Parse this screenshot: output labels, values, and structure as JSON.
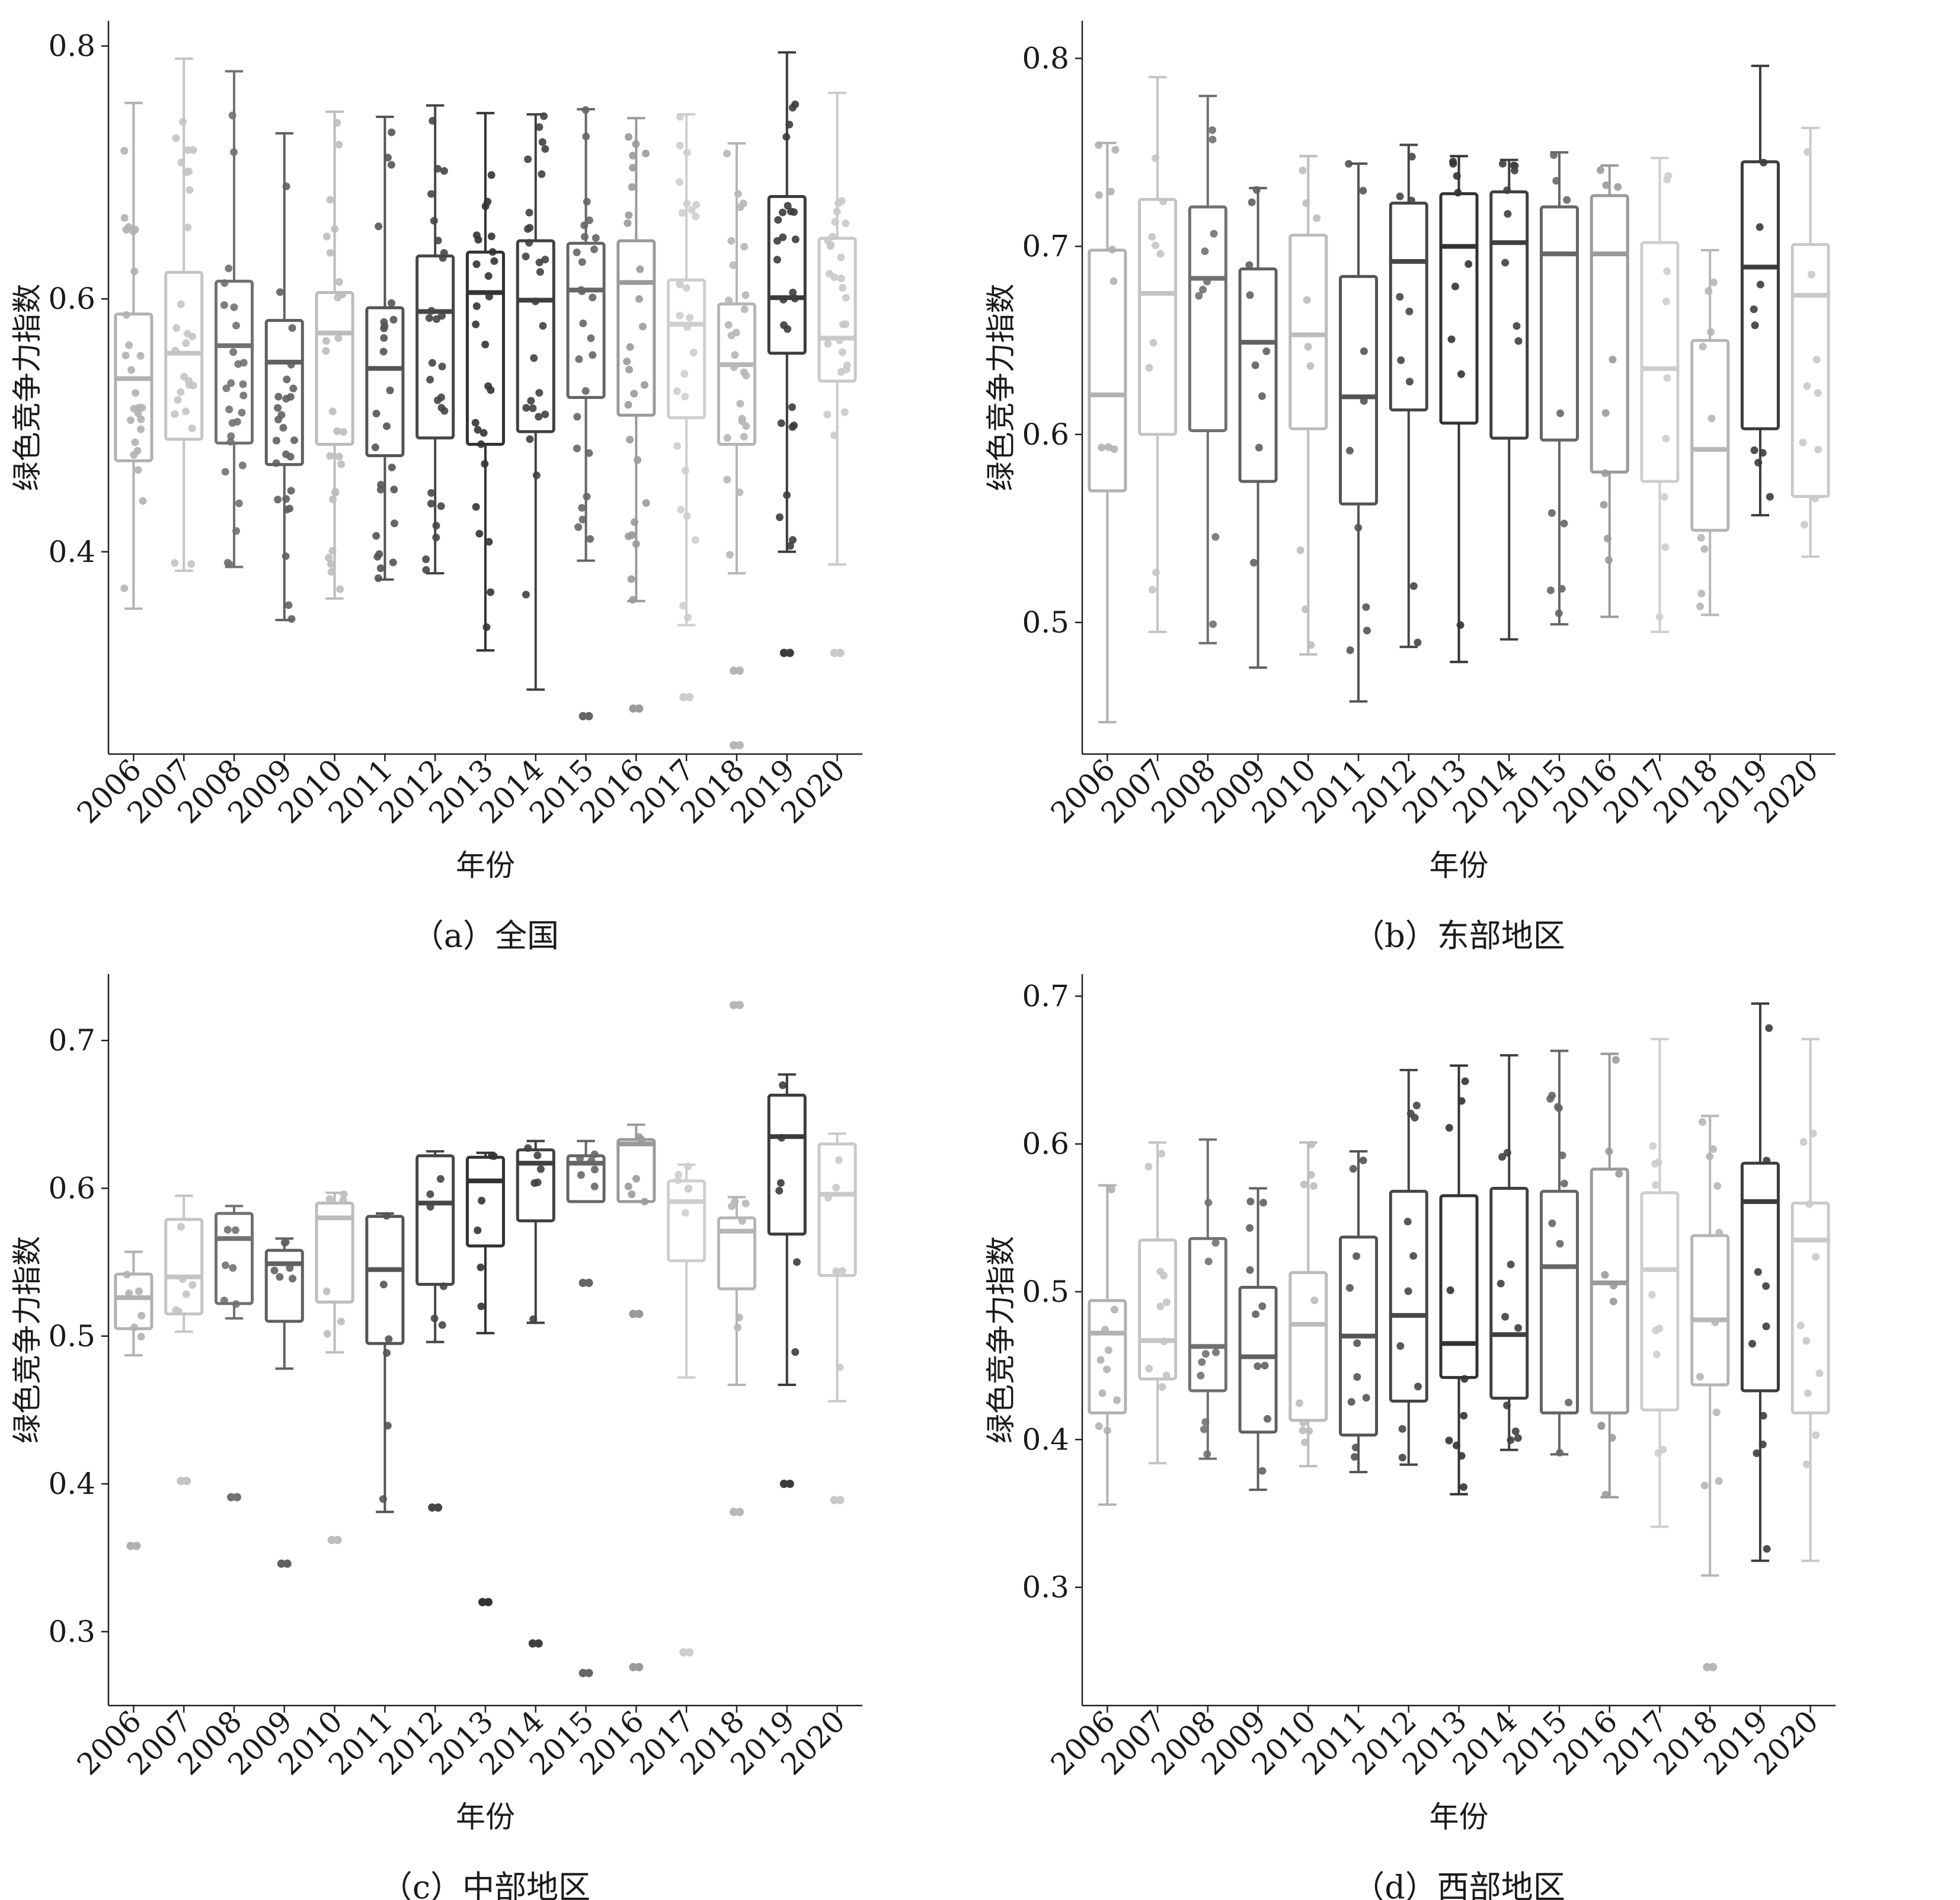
{
  "xlabel": "年份",
  "ylabel": "绿色竞争力指数",
  "years": [
    "2006",
    "2007",
    "2008",
    "2009",
    "2010",
    "2011",
    "2012",
    "2013",
    "2014",
    "2015",
    "2016",
    "2017",
    "2018",
    "2019",
    "2020"
  ],
  "year_colors": [
    "#b1b1b1",
    "#c4c4c4",
    "#717171",
    "#606060",
    "#bcbcbc",
    "#545454",
    "#464646",
    "#333333",
    "#404040",
    "#666666",
    "#9a9a9a",
    "#cecece",
    "#b6b6b6",
    "#3c3c3c",
    "#c9c9c9"
  ],
  "chart_data": [
    {
      "type": "box",
      "caption": "（a）全国",
      "ylim": [
        0.24,
        0.82
      ],
      "yticks": [
        "0.4",
        "0.6",
        "0.8"
      ],
      "boxes": [
        {
          "year": "2006",
          "q1": 0.472,
          "median": 0.537,
          "q3": 0.588,
          "whisker_low": 0.355,
          "whisker_high": 0.755,
          "outliers": []
        },
        {
          "year": "2007",
          "q1": 0.489,
          "median": 0.557,
          "q3": 0.621,
          "whisker_low": 0.385,
          "whisker_high": 0.79,
          "outliers": []
        },
        {
          "year": "2008",
          "q1": 0.486,
          "median": 0.563,
          "q3": 0.614,
          "whisker_low": 0.388,
          "whisker_high": 0.78,
          "outliers": []
        },
        {
          "year": "2009",
          "q1": 0.469,
          "median": 0.55,
          "q3": 0.583,
          "whisker_low": 0.346,
          "whisker_high": 0.731,
          "outliers": []
        },
        {
          "year": "2010",
          "q1": 0.485,
          "median": 0.573,
          "q3": 0.605,
          "whisker_low": 0.363,
          "whisker_high": 0.748,
          "outliers": []
        },
        {
          "year": "2011",
          "q1": 0.476,
          "median": 0.545,
          "q3": 0.593,
          "whisker_low": 0.378,
          "whisker_high": 0.744,
          "outliers": []
        },
        {
          "year": "2012",
          "q1": 0.49,
          "median": 0.59,
          "q3": 0.634,
          "whisker_low": 0.383,
          "whisker_high": 0.753,
          "outliers": []
        },
        {
          "year": "2013",
          "q1": 0.485,
          "median": 0.605,
          "q3": 0.637,
          "whisker_low": 0.322,
          "whisker_high": 0.747,
          "outliers": []
        },
        {
          "year": "2014",
          "q1": 0.495,
          "median": 0.599,
          "q3": 0.646,
          "whisker_low": 0.291,
          "whisker_high": 0.746,
          "outliers": []
        },
        {
          "year": "2015",
          "q1": 0.522,
          "median": 0.607,
          "q3": 0.644,
          "whisker_low": 0.393,
          "whisker_high": 0.75,
          "outliers": [
            0.27
          ]
        },
        {
          "year": "2016",
          "q1": 0.508,
          "median": 0.613,
          "q3": 0.646,
          "whisker_low": 0.361,
          "whisker_high": 0.743,
          "outliers": [
            0.276
          ]
        },
        {
          "year": "2017",
          "q1": 0.506,
          "median": 0.58,
          "q3": 0.615,
          "whisker_low": 0.342,
          "whisker_high": 0.746,
          "outliers": [
            0.285
          ]
        },
        {
          "year": "2018",
          "q1": 0.485,
          "median": 0.548,
          "q3": 0.596,
          "whisker_low": 0.383,
          "whisker_high": 0.723,
          "outliers": [
            0.306,
            0.247
          ]
        },
        {
          "year": "2019",
          "q1": 0.557,
          "median": 0.601,
          "q3": 0.681,
          "whisker_low": 0.4,
          "whisker_high": 0.795,
          "outliers": [
            0.32
          ]
        },
        {
          "year": "2020",
          "q1": 0.535,
          "median": 0.569,
          "q3": 0.648,
          "whisker_low": 0.39,
          "whisker_high": 0.763,
          "outliers": [
            0.32
          ]
        }
      ]
    },
    {
      "type": "box",
      "caption": "（b）东部地区",
      "ylim": [
        0.43,
        0.82
      ],
      "yticks": [
        "0.5",
        "0.6",
        "0.7",
        "0.8"
      ],
      "boxes": [
        {
          "year": "2006",
          "q1": 0.57,
          "median": 0.621,
          "q3": 0.698,
          "whisker_low": 0.447,
          "whisker_high": 0.755,
          "outliers": []
        },
        {
          "year": "2007",
          "q1": 0.6,
          "median": 0.675,
          "q3": 0.725,
          "whisker_low": 0.495,
          "whisker_high": 0.79,
          "outliers": []
        },
        {
          "year": "2008",
          "q1": 0.602,
          "median": 0.683,
          "q3": 0.721,
          "whisker_low": 0.489,
          "whisker_high": 0.78,
          "outliers": []
        },
        {
          "year": "2009",
          "q1": 0.575,
          "median": 0.649,
          "q3": 0.688,
          "whisker_low": 0.476,
          "whisker_high": 0.731,
          "outliers": []
        },
        {
          "year": "2010",
          "q1": 0.603,
          "median": 0.653,
          "q3": 0.706,
          "whisker_low": 0.483,
          "whisker_high": 0.748,
          "outliers": []
        },
        {
          "year": "2011",
          "q1": 0.563,
          "median": 0.62,
          "q3": 0.684,
          "whisker_low": 0.458,
          "whisker_high": 0.744,
          "outliers": []
        },
        {
          "year": "2012",
          "q1": 0.613,
          "median": 0.692,
          "q3": 0.723,
          "whisker_low": 0.487,
          "whisker_high": 0.754,
          "outliers": []
        },
        {
          "year": "2013",
          "q1": 0.606,
          "median": 0.7,
          "q3": 0.728,
          "whisker_low": 0.479,
          "whisker_high": 0.748,
          "outliers": []
        },
        {
          "year": "2014",
          "q1": 0.598,
          "median": 0.702,
          "q3": 0.729,
          "whisker_low": 0.491,
          "whisker_high": 0.746,
          "outliers": []
        },
        {
          "year": "2015",
          "q1": 0.597,
          "median": 0.696,
          "q3": 0.721,
          "whisker_low": 0.499,
          "whisker_high": 0.75,
          "outliers": []
        },
        {
          "year": "2016",
          "q1": 0.58,
          "median": 0.696,
          "q3": 0.727,
          "whisker_low": 0.503,
          "whisker_high": 0.743,
          "outliers": []
        },
        {
          "year": "2017",
          "q1": 0.575,
          "median": 0.635,
          "q3": 0.702,
          "whisker_low": 0.495,
          "whisker_high": 0.747,
          "outliers": []
        },
        {
          "year": "2018",
          "q1": 0.549,
          "median": 0.592,
          "q3": 0.65,
          "whisker_low": 0.504,
          "whisker_high": 0.698,
          "outliers": []
        },
        {
          "year": "2019",
          "q1": 0.603,
          "median": 0.689,
          "q3": 0.745,
          "whisker_low": 0.557,
          "whisker_high": 0.796,
          "outliers": []
        },
        {
          "year": "2020",
          "q1": 0.567,
          "median": 0.674,
          "q3": 0.701,
          "whisker_low": 0.535,
          "whisker_high": 0.763,
          "outliers": []
        }
      ]
    },
    {
      "type": "box",
      "caption": "（c）中部地区",
      "ylim": [
        0.25,
        0.745
      ],
      "yticks": [
        "0.3",
        "0.4",
        "0.5",
        "0.6",
        "0.7"
      ],
      "boxes": [
        {
          "year": "2006",
          "q1": 0.505,
          "median": 0.526,
          "q3": 0.542,
          "whisker_low": 0.487,
          "whisker_high": 0.557,
          "outliers": [
            0.358
          ]
        },
        {
          "year": "2007",
          "q1": 0.515,
          "median": 0.54,
          "q3": 0.579,
          "whisker_low": 0.503,
          "whisker_high": 0.595,
          "outliers": [
            0.402
          ]
        },
        {
          "year": "2008",
          "q1": 0.522,
          "median": 0.566,
          "q3": 0.583,
          "whisker_low": 0.512,
          "whisker_high": 0.588,
          "outliers": [
            0.391
          ]
        },
        {
          "year": "2009",
          "q1": 0.51,
          "median": 0.549,
          "q3": 0.558,
          "whisker_low": 0.478,
          "whisker_high": 0.566,
          "outliers": [
            0.346
          ]
        },
        {
          "year": "2010",
          "q1": 0.523,
          "median": 0.58,
          "q3": 0.59,
          "whisker_low": 0.489,
          "whisker_high": 0.597,
          "outliers": [
            0.362
          ]
        },
        {
          "year": "2011",
          "q1": 0.495,
          "median": 0.545,
          "q3": 0.581,
          "whisker_low": 0.381,
          "whisker_high": 0.583,
          "outliers": []
        },
        {
          "year": "2012",
          "q1": 0.535,
          "median": 0.59,
          "q3": 0.622,
          "whisker_low": 0.496,
          "whisker_high": 0.625,
          "outliers": [
            0.384
          ]
        },
        {
          "year": "2013",
          "q1": 0.561,
          "median": 0.605,
          "q3": 0.621,
          "whisker_low": 0.502,
          "whisker_high": 0.624,
          "outliers": [
            0.32
          ]
        },
        {
          "year": "2014",
          "q1": 0.578,
          "median": 0.617,
          "q3": 0.626,
          "whisker_low": 0.509,
          "whisker_high": 0.632,
          "outliers": [
            0.292
          ]
        },
        {
          "year": "2015",
          "q1": 0.591,
          "median": 0.617,
          "q3": 0.622,
          "whisker_low": 0.591,
          "whisker_high": 0.632,
          "outliers": [
            0.536,
            0.272
          ]
        },
        {
          "year": "2016",
          "q1": 0.591,
          "median": 0.63,
          "q3": 0.633,
          "whisker_low": 0.591,
          "whisker_high": 0.643,
          "outliers": [
            0.515,
            0.276
          ]
        },
        {
          "year": "2017",
          "q1": 0.551,
          "median": 0.591,
          "q3": 0.605,
          "whisker_low": 0.472,
          "whisker_high": 0.616,
          "outliers": [
            0.286
          ]
        },
        {
          "year": "2018",
          "q1": 0.532,
          "median": 0.571,
          "q3": 0.58,
          "whisker_low": 0.467,
          "whisker_high": 0.594,
          "outliers": [
            0.724,
            0.381
          ]
        },
        {
          "year": "2019",
          "q1": 0.569,
          "median": 0.635,
          "q3": 0.663,
          "whisker_low": 0.467,
          "whisker_high": 0.677,
          "outliers": [
            0.4
          ]
        },
        {
          "year": "2020",
          "q1": 0.541,
          "median": 0.596,
          "q3": 0.63,
          "whisker_low": 0.456,
          "whisker_high": 0.637,
          "outliers": [
            0.389
          ]
        }
      ]
    },
    {
      "type": "box",
      "caption": "（d）西部地区",
      "ylim": [
        0.22,
        0.715
      ],
      "yticks": [
        "0.3",
        "0.4",
        "0.5",
        "0.6",
        "0.7"
      ],
      "boxes": [
        {
          "year": "2006",
          "q1": 0.418,
          "median": 0.472,
          "q3": 0.494,
          "whisker_low": 0.356,
          "whisker_high": 0.572,
          "outliers": []
        },
        {
          "year": "2007",
          "q1": 0.441,
          "median": 0.467,
          "q3": 0.535,
          "whisker_low": 0.384,
          "whisker_high": 0.601,
          "outliers": []
        },
        {
          "year": "2008",
          "q1": 0.433,
          "median": 0.463,
          "q3": 0.536,
          "whisker_low": 0.387,
          "whisker_high": 0.603,
          "outliers": []
        },
        {
          "year": "2009",
          "q1": 0.405,
          "median": 0.456,
          "q3": 0.503,
          "whisker_low": 0.366,
          "whisker_high": 0.57,
          "outliers": []
        },
        {
          "year": "2010",
          "q1": 0.413,
          "median": 0.478,
          "q3": 0.513,
          "whisker_low": 0.382,
          "whisker_high": 0.601,
          "outliers": []
        },
        {
          "year": "2011",
          "q1": 0.403,
          "median": 0.47,
          "q3": 0.537,
          "whisker_low": 0.378,
          "whisker_high": 0.595,
          "outliers": []
        },
        {
          "year": "2012",
          "q1": 0.426,
          "median": 0.484,
          "q3": 0.568,
          "whisker_low": 0.383,
          "whisker_high": 0.65,
          "outliers": []
        },
        {
          "year": "2013",
          "q1": 0.442,
          "median": 0.465,
          "q3": 0.565,
          "whisker_low": 0.363,
          "whisker_high": 0.653,
          "outliers": []
        },
        {
          "year": "2014",
          "q1": 0.428,
          "median": 0.471,
          "q3": 0.57,
          "whisker_low": 0.393,
          "whisker_high": 0.66,
          "outliers": []
        },
        {
          "year": "2015",
          "q1": 0.418,
          "median": 0.517,
          "q3": 0.568,
          "whisker_low": 0.39,
          "whisker_high": 0.663,
          "outliers": []
        },
        {
          "year": "2016",
          "q1": 0.418,
          "median": 0.506,
          "q3": 0.583,
          "whisker_low": 0.361,
          "whisker_high": 0.661,
          "outliers": []
        },
        {
          "year": "2017",
          "q1": 0.42,
          "median": 0.515,
          "q3": 0.567,
          "whisker_low": 0.341,
          "whisker_high": 0.671,
          "outliers": []
        },
        {
          "year": "2018",
          "q1": 0.437,
          "median": 0.481,
          "q3": 0.538,
          "whisker_low": 0.308,
          "whisker_high": 0.619,
          "outliers": [
            0.246
          ]
        },
        {
          "year": "2019",
          "q1": 0.433,
          "median": 0.561,
          "q3": 0.587,
          "whisker_low": 0.318,
          "whisker_high": 0.695,
          "outliers": []
        },
        {
          "year": "2020",
          "q1": 0.418,
          "median": 0.535,
          "q3": 0.56,
          "whisker_low": 0.318,
          "whisker_high": 0.671,
          "outliers": []
        }
      ]
    }
  ]
}
